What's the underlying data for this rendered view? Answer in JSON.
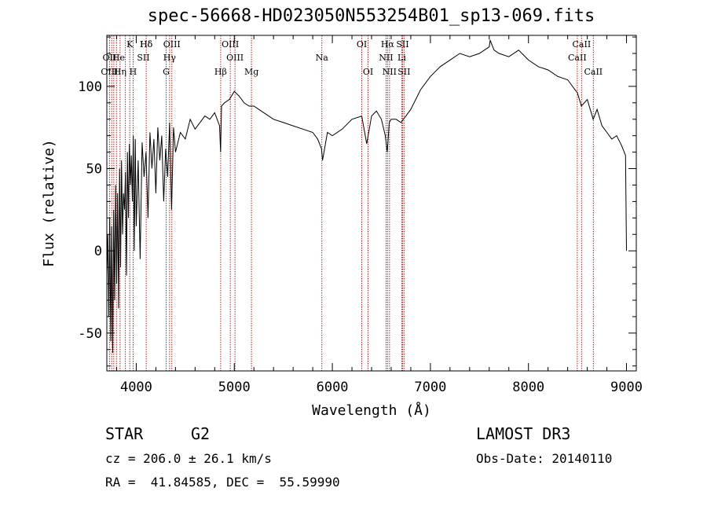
{
  "chart_data": {
    "type": "line",
    "title": "spec-56668-HD023050N553254B01_sp13-069.fits",
    "xlabel": "Wavelength (Å)",
    "ylabel": "Flux (relative)",
    "xlim": [
      3700,
      9100
    ],
    "ylim": [
      -73,
      131
    ],
    "xticks": [
      4000,
      5000,
      6000,
      7000,
      8000,
      9000
    ],
    "yticks": [
      -50,
      0,
      50,
      100
    ],
    "series": [
      {
        "name": "spectrum",
        "x": [
          3700,
          3710,
          3720,
          3730,
          3740,
          3750,
          3760,
          3770,
          3780,
          3790,
          3800,
          3810,
          3820,
          3830,
          3840,
          3850,
          3860,
          3870,
          3880,
          3890,
          3900,
          3910,
          3920,
          3930,
          3940,
          3950,
          3960,
          3970,
          3980,
          3990,
          4000,
          4020,
          4040,
          4060,
          4080,
          4100,
          4120,
          4140,
          4160,
          4180,
          4200,
          4220,
          4240,
          4260,
          4280,
          4300,
          4320,
          4340,
          4360,
          4380,
          4400,
          4450,
          4500,
          4550,
          4600,
          4650,
          4700,
          4750,
          4800,
          4850,
          4860,
          4870,
          4900,
          4950,
          5000,
          5050,
          5100,
          5150,
          5200,
          5250,
          5300,
          5400,
          5500,
          5600,
          5700,
          5800,
          5850,
          5890,
          5900,
          5950,
          6000,
          6100,
          6200,
          6300,
          6350,
          6400,
          6450,
          6500,
          6540,
          6560,
          6580,
          6600,
          6650,
          6700,
          6750,
          6800,
          6850,
          6900,
          7000,
          7100,
          7200,
          7300,
          7400,
          7500,
          7550,
          7600,
          7610,
          7650,
          7700,
          7800,
          7900,
          8000,
          8100,
          8200,
          8300,
          8400,
          8500,
          8540,
          8600,
          8660,
          8700,
          8750,
          8800,
          8850,
          8900,
          8950,
          8990,
          9000
        ],
        "y": [
          -15,
          10,
          -40,
          20,
          -55,
          15,
          -62,
          25,
          -30,
          40,
          -20,
          35,
          -35,
          50,
          -10,
          55,
          10,
          35,
          25,
          48,
          -15,
          60,
          20,
          65,
          40,
          58,
          30,
          70,
          0,
          68,
          15,
          55,
          -5,
          66,
          45,
          60,
          20,
          72,
          50,
          68,
          35,
          75,
          55,
          70,
          30,
          62,
          45,
          78,
          25,
          75,
          60,
          72,
          68,
          80,
          74,
          78,
          82,
          80,
          84,
          76,
          60,
          88,
          90,
          92,
          97,
          94,
          90,
          88,
          88,
          86,
          84,
          80,
          78,
          76,
          74,
          72,
          68,
          62,
          55,
          72,
          70,
          74,
          80,
          82,
          65,
          82,
          85,
          80,
          70,
          60,
          78,
          80,
          80,
          78,
          82,
          86,
          92,
          98,
          106,
          112,
          116,
          120,
          118,
          120,
          122,
          124,
          128,
          122,
          120,
          118,
          122,
          116,
          112,
          110,
          106,
          104,
          96,
          88,
          92,
          80,
          86,
          76,
          72,
          68,
          70,
          64,
          58,
          0
        ],
        "color": "#000000"
      }
    ],
    "line_markers": [
      {
        "label": "Hδ",
        "x": 4102,
        "row": 1
      },
      {
        "label": "K",
        "x": 3934,
        "row": 1
      },
      {
        "label": "Hδ",
        "x": 4102,
        "row": 1
      },
      {
        "label": "OIII",
        "x": 4363,
        "row": 1
      },
      {
        "label": "OIII",
        "x": 4959,
        "row": 1
      },
      {
        "label": "OI",
        "x": 6300,
        "row": 1
      },
      {
        "label": "Hα",
        "x": 6563,
        "row": 1
      },
      {
        "label": "SII",
        "x": 6716,
        "row": 1
      },
      {
        "label": "CaII",
        "x": 8542,
        "row": 1
      },
      {
        "label": "OII",
        "x": 3727,
        "row": 2
      },
      {
        "label": "He",
        "x": 3820,
        "row": 2
      },
      {
        "label": "SII",
        "x": 4072,
        "row": 2
      },
      {
        "label": "Hγ",
        "x": 4340,
        "row": 2
      },
      {
        "label": "OIII",
        "x": 5007,
        "row": 2
      },
      {
        "label": "Na",
        "x": 5893,
        "row": 2
      },
      {
        "label": "NII",
        "x": 6548,
        "row": 2
      },
      {
        "label": "Li",
        "x": 6708,
        "row": 2
      },
      {
        "label": "CaII",
        "x": 8498,
        "row": 2
      },
      {
        "label": "OIII",
        "x": 3727,
        "row": 3
      },
      {
        "label": "Hη",
        "x": 3835,
        "row": 3
      },
      {
        "label": "H",
        "x": 3968,
        "row": 3
      },
      {
        "label": "G",
        "x": 4305,
        "row": 3
      },
      {
        "label": "Hβ",
        "x": 4861,
        "row": 3
      },
      {
        "label": "Mg",
        "x": 5175,
        "row": 3
      },
      {
        "label": "OI",
        "x": 6364,
        "row": 3
      },
      {
        "label": "NII",
        "x": 6583,
        "row": 3
      },
      {
        "label": "SII",
        "x": 6731,
        "row": 3
      },
      {
        "label": "CaII",
        "x": 8662,
        "row": 3
      }
    ],
    "marker_lines_x": [
      3727,
      3750,
      3771,
      3798,
      3835,
      3889,
      3934,
      3968,
      4102,
      4305,
      4340,
      4363,
      4861,
      4959,
      5007,
      5175,
      5893,
      6300,
      6364,
      6548,
      6563,
      6583,
      6708,
      6716,
      6731,
      8498,
      8542,
      8662
    ]
  },
  "footer": {
    "object": "STAR",
    "subclass": "G2",
    "survey": "LAMOST DR3",
    "cz": "cz = 206.0 ± 26.1 km/s",
    "obs_date": "Obs-Date: 20140110",
    "coords": "RA =  41.84585, DEC =  55.59990"
  },
  "colors": {
    "line": "#000000",
    "marker": "#b22222",
    "axis": "#000000"
  }
}
